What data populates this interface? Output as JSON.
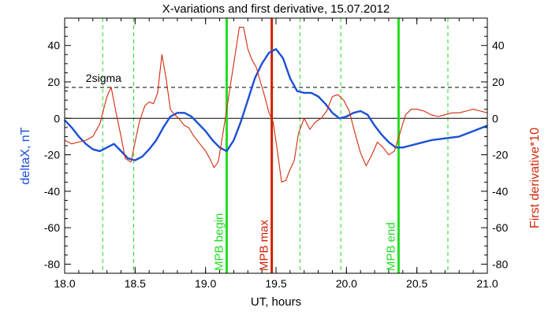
{
  "chart_data": {
    "type": "line",
    "title": "X-variations and first derivative, 15.07.2012",
    "xlabel": "UT, hours",
    "ylabel_left": "deltaX, nT",
    "ylabel_right": "First derivative*10",
    "xlim": [
      18.0,
      21.0
    ],
    "ylim": [
      -85,
      55
    ],
    "xticks": [
      "18.0",
      "18.5",
      "19.0",
      "19.5",
      "20.0",
      "20.5",
      "21.0"
    ],
    "yticks": [
      "40",
      "20",
      "0",
      "-20",
      "-40",
      "-60",
      "-80"
    ],
    "sigma_label": "2sigma",
    "sigma_level": 17,
    "dashed_markers": [
      18.27,
      18.49,
      19.67,
      19.96,
      20.72
    ],
    "events": [
      {
        "x": 19.15,
        "label": "MPB begin",
        "color": "#22dd22"
      },
      {
        "x": 19.47,
        "label": "MPB max",
        "color": "#cc2200"
      },
      {
        "x": 20.37,
        "label": "MPB end",
        "color": "#22dd22"
      }
    ],
    "series": [
      {
        "color": "#1a4fd6",
        "x": [
          18.0,
          18.05,
          18.1,
          18.15,
          18.2,
          18.25,
          18.3,
          18.35,
          18.4,
          18.45,
          18.5,
          18.55,
          18.6,
          18.65,
          18.7,
          18.75,
          18.8,
          18.85,
          18.9,
          18.95,
          19.0,
          19.05,
          19.1,
          19.15,
          19.2,
          19.25,
          19.3,
          19.35,
          19.4,
          19.45,
          19.5,
          19.55,
          19.6,
          19.65,
          19.7,
          19.75,
          19.8,
          19.85,
          19.9,
          19.95,
          20.0,
          20.05,
          20.1,
          20.15,
          20.2,
          20.25,
          20.3,
          20.35,
          20.4,
          20.45,
          20.5,
          20.6,
          20.7,
          20.8,
          20.9,
          21.0
        ],
        "y": [
          -1,
          -5,
          -10,
          -14,
          -17,
          -18,
          -16,
          -14,
          -18,
          -22,
          -23,
          -21,
          -17,
          -12,
          -5,
          1,
          3,
          3,
          1,
          -3,
          -7,
          -12,
          -16,
          -18,
          -12,
          -2,
          10,
          22,
          30,
          36,
          38,
          33,
          22,
          15,
          14,
          14,
          12,
          8,
          3,
          0,
          1,
          3,
          4,
          2,
          -4,
          -9,
          -13,
          -16,
          -16,
          -15,
          -14,
          -12,
          -11,
          -10,
          -7,
          -4
        ]
      },
      {
        "color": "#d42a0a",
        "x": [
          18.0,
          18.05,
          18.1,
          18.15,
          18.2,
          18.25,
          18.3,
          18.33,
          18.36,
          18.4,
          18.43,
          18.47,
          18.5,
          18.53,
          18.57,
          18.6,
          18.63,
          18.66,
          18.69,
          18.72,
          18.75,
          18.78,
          18.81,
          18.85,
          18.88,
          18.91,
          18.94,
          18.97,
          19.0,
          19.03,
          19.06,
          19.09,
          19.12,
          19.15,
          19.18,
          19.21,
          19.24,
          19.27,
          19.3,
          19.33,
          19.36,
          19.39,
          19.42,
          19.45,
          19.48,
          19.51,
          19.54,
          19.57,
          19.6,
          19.63,
          19.66,
          19.7,
          19.74,
          19.78,
          19.82,
          19.86,
          19.9,
          19.94,
          19.98,
          20.02,
          20.06,
          20.1,
          20.14,
          20.18,
          20.22,
          20.26,
          20.3,
          20.34,
          20.38,
          20.42,
          20.46,
          20.5,
          20.55,
          20.6,
          20.65,
          20.7,
          20.75,
          20.8,
          20.85,
          20.9,
          20.95,
          21.0
        ],
        "y": [
          -12,
          -14,
          -13,
          -12,
          -10,
          -3,
          12,
          17,
          5,
          -10,
          -22,
          -24,
          -13,
          -2,
          7,
          9,
          8,
          14,
          35,
          22,
          5,
          2,
          0,
          -4,
          -5,
          -9,
          -12,
          -15,
          -18,
          -22,
          -27,
          -24,
          -10,
          5,
          20,
          35,
          50,
          50,
          38,
          32,
          28,
          20,
          12,
          3,
          -2,
          -18,
          -35,
          -34,
          -28,
          -23,
          -8,
          0,
          -6,
          -2,
          0,
          4,
          12,
          13,
          10,
          4,
          -8,
          -19,
          -26,
          -20,
          -13,
          -16,
          -20,
          -18,
          -8,
          2,
          5,
          5,
          4,
          2,
          1,
          2,
          3,
          3,
          4,
          5,
          4,
          3
        ]
      }
    ]
  }
}
